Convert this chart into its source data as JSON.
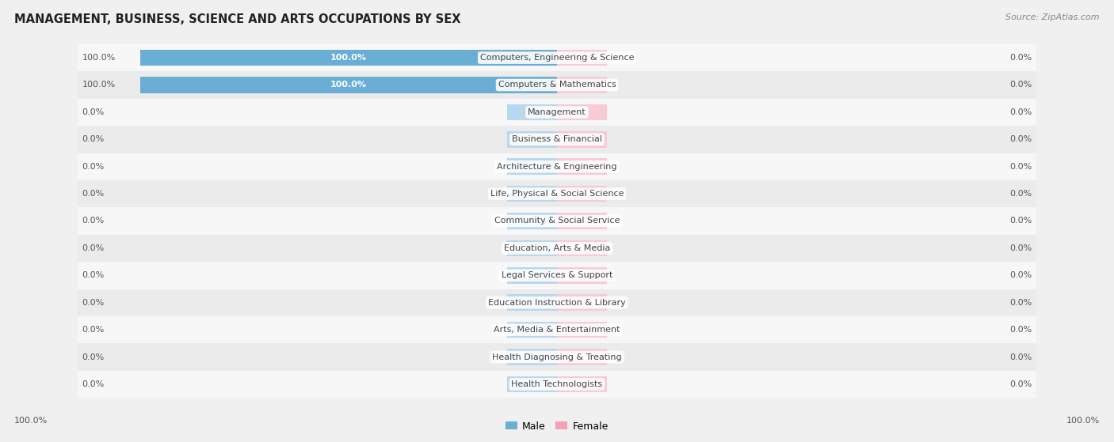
{
  "title": "MANAGEMENT, BUSINESS, SCIENCE AND ARTS OCCUPATIONS BY SEX",
  "source": "Source: ZipAtlas.com",
  "categories": [
    "Computers, Engineering & Science",
    "Computers & Mathematics",
    "Management",
    "Business & Financial",
    "Architecture & Engineering",
    "Life, Physical & Social Science",
    "Community & Social Service",
    "Education, Arts & Media",
    "Legal Services & Support",
    "Education Instruction & Library",
    "Arts, Media & Entertainment",
    "Health Diagnosing & Treating",
    "Health Technologists"
  ],
  "male_values": [
    100.0,
    100.0,
    0.0,
    0.0,
    0.0,
    0.0,
    0.0,
    0.0,
    0.0,
    0.0,
    0.0,
    0.0,
    0.0
  ],
  "female_values": [
    0.0,
    0.0,
    0.0,
    0.0,
    0.0,
    0.0,
    0.0,
    0.0,
    0.0,
    0.0,
    0.0,
    0.0,
    0.0
  ],
  "male_color": "#6aaed6",
  "female_color": "#f4a0b5",
  "male_color_light": "#b8d8ed",
  "female_color_light": "#f9c9d5",
  "text_color": "#444444",
  "value_color": "#555555",
  "bg_color": "#f0f0f0",
  "row_even_color": "#f7f7f7",
  "row_odd_color": "#ebebeb",
  "title_fontsize": 10.5,
  "source_fontsize": 8,
  "label_fontsize": 8,
  "value_fontsize": 8,
  "bar_label_fontsize": 8,
  "legend_label_male": "Male",
  "legend_label_female": "Female",
  "stub_size": 12,
  "max_val": 100
}
